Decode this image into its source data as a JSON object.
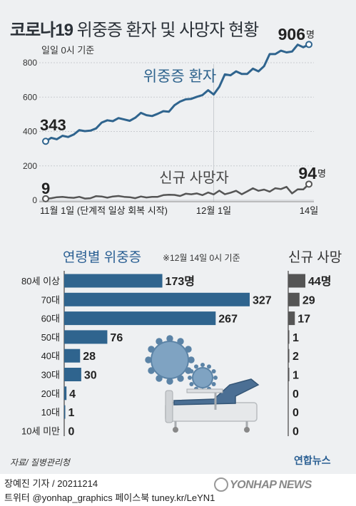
{
  "title_main": "코로나19",
  "title_sub": "위중증 환자 및 사망자 현황",
  "basis_note": "일일 0시 기준",
  "colors": {
    "critical": "#2f648e",
    "deaths": "#555555",
    "bar_blue": "#2f648e",
    "bar_gray": "#555555",
    "accent_blue": "#2a5f93"
  },
  "chart_data": [
    {
      "type": "line",
      "x_ticks": [
        "11월 1일 (단계적 일상 회복 시작)",
        "12월 1일",
        "14일"
      ],
      "y_ticks": [
        0,
        200,
        400,
        600,
        800
      ],
      "ylim": [
        0,
        950
      ],
      "series": [
        {
          "name": "위중증 환자",
          "values": [
            343,
            363,
            355,
            375,
            368,
            382,
            408,
            402,
            405,
            418,
            452,
            465,
            460,
            478,
            470,
            462,
            480,
            508,
            495,
            490,
            503,
            518,
            515,
            553,
            574,
            587,
            590,
            602,
            612,
            640,
            615,
            660,
            732,
            727,
            750,
            735,
            735,
            765,
            750,
            780,
            850,
            850,
            870,
            860,
            865,
            905,
            890,
            906
          ]
        },
        {
          "name": "신규 사망자",
          "values": [
            9,
            12,
            18,
            20,
            16,
            14,
            20,
            10,
            12,
            24,
            22,
            15,
            22,
            25,
            20,
            18,
            12,
            22,
            16,
            20,
            20,
            30,
            32,
            31,
            25,
            38,
            35,
            40,
            30,
            45,
            34,
            56,
            35,
            44,
            55,
            35,
            52,
            70,
            55,
            62,
            50,
            70,
            65,
            78,
            40,
            64,
            63,
            94
          ]
        }
      ],
      "labels": {
        "critical_start": "343",
        "critical_end": "906",
        "deaths_start": "9",
        "deaths_end": "94",
        "unit": "명"
      }
    },
    {
      "type": "bar",
      "title": "연령별 위중증",
      "note": "※12월 14일 0시 기준",
      "categories": [
        "80세 이상",
        "70대",
        "60대",
        "50대",
        "40대",
        "30대",
        "20대",
        "10대",
        "10세 미만"
      ],
      "values": [
        173,
        327,
        267,
        76,
        28,
        30,
        4,
        1,
        0
      ],
      "value_labels": [
        "173명",
        "327",
        "267",
        "76",
        "28",
        "30",
        "4",
        "1",
        "0"
      ]
    },
    {
      "type": "bar",
      "title": "신규 사망",
      "categories": [
        "80세 이상",
        "70대",
        "60대",
        "50대",
        "40대",
        "30대",
        "20대",
        "10대",
        "10세 미만"
      ],
      "values": [
        44,
        29,
        17,
        1,
        2,
        1,
        0,
        0,
        0
      ],
      "value_labels": [
        "44명",
        "29",
        "17",
        "1",
        "2",
        "1",
        "0",
        "0",
        "0"
      ]
    }
  ],
  "footer": {
    "source": "자료/ 질병관리청",
    "brand": "연합뉴스",
    "reporter": "장예진 기자 / 20211214",
    "social": "트위터 @yonhap_graphics  페이스북 tuney.kr/LeYN1",
    "watermark": "YONHAP NEWS"
  }
}
